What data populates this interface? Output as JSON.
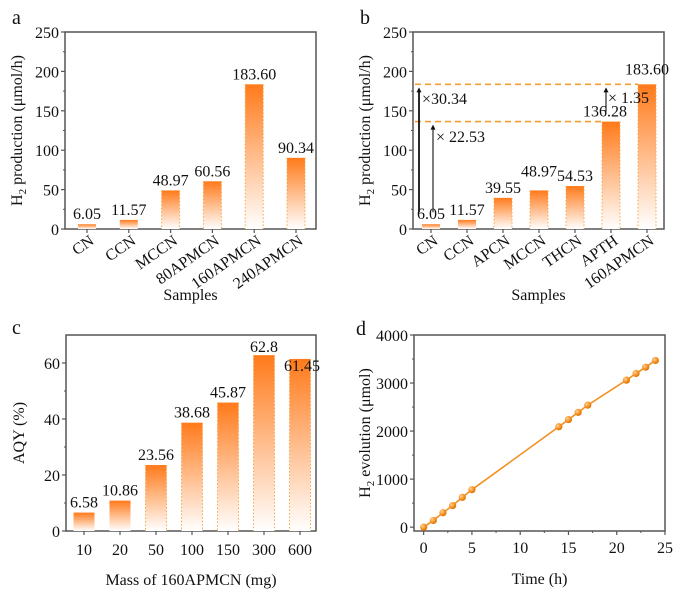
{
  "chart_data": [
    {
      "panel": "a",
      "type": "bar",
      "title": "",
      "xlabel": "Samples",
      "ylabel": "H2 production (μmol/h)",
      "ylim": [
        0,
        250
      ],
      "yticks": [
        0,
        50,
        100,
        150,
        200,
        250
      ],
      "categories": [
        "CN",
        "CCN",
        "MCCN",
        "80APMCN",
        "160APMCN",
        "240APMCN"
      ],
      "values": [
        6.05,
        11.57,
        48.97,
        60.56,
        183.6,
        90.34
      ],
      "data_labels": [
        "6.05",
        "11.57",
        "48.97",
        "60.56",
        "183.60",
        "90.34"
      ]
    },
    {
      "panel": "b",
      "type": "bar",
      "title": "",
      "xlabel": "Samples",
      "ylabel": "H2 production (μmol/h)",
      "ylim": [
        0,
        250
      ],
      "yticks": [
        0,
        50,
        100,
        150,
        200,
        250
      ],
      "categories": [
        "CN",
        "CCN",
        "APCN",
        "MCCN",
        "THCN",
        "APTH",
        "160APMCN"
      ],
      "values": [
        6.05,
        11.57,
        39.55,
        48.97,
        54.53,
        136.28,
        183.6
      ],
      "data_labels": [
        "6.05",
        "11.57",
        "39.55",
        "48.97",
        "54.53",
        "136.28",
        "183.60"
      ],
      "annotations": [
        {
          "text": "×30.34",
          "from": 6.05,
          "to": 183.6
        },
        {
          "text": "× 22.53",
          "from": 6.05,
          "to": 136.28
        },
        {
          "text": "× 1.35",
          "from": 136.28,
          "to": 183.6
        }
      ],
      "reference_lines": [
        183.6,
        136.28
      ]
    },
    {
      "panel": "c",
      "type": "bar",
      "title": "",
      "xlabel": "Mass of 160APMCN (mg)",
      "ylabel": "AQY (%)",
      "ylim": [
        0,
        70
      ],
      "yticks": [
        0,
        20,
        40,
        60
      ],
      "categories": [
        "10",
        "20",
        "50",
        "100",
        "150",
        "300",
        "600"
      ],
      "values": [
        6.58,
        10.86,
        23.56,
        38.68,
        45.87,
        62.8,
        61.45
      ],
      "data_labels": [
        "6.58",
        "10.86",
        "23.56",
        "38.68",
        "45.87",
        "62.8",
        "61.45"
      ]
    },
    {
      "panel": "d",
      "type": "line",
      "title": "",
      "xlabel": "Time (h)",
      "ylabel": "H2 evolution (μmol)",
      "xlim": [
        -1,
        25
      ],
      "ylim": [
        -80,
        4000
      ],
      "xticks": [
        0,
        5,
        10,
        15,
        20,
        25
      ],
      "yticks": [
        0,
        1000,
        2000,
        3000,
        4000
      ],
      "x": [
        0,
        1,
        2,
        3,
        4,
        5,
        14,
        15,
        16,
        17,
        21,
        22,
        23,
        24
      ],
      "y": [
        0,
        140,
        300,
        450,
        620,
        780,
        2090,
        2240,
        2390,
        2540,
        3060,
        3200,
        3330,
        3470
      ]
    }
  ],
  "colors": {
    "bar_top": "#ff7a1a",
    "bar_bottom": "#ffffff",
    "bar_dotted_edge": "#f5a84a",
    "ref_line": "#f0a030",
    "line": "#f39020",
    "marker": "#f5901e",
    "axis": "#555555"
  }
}
